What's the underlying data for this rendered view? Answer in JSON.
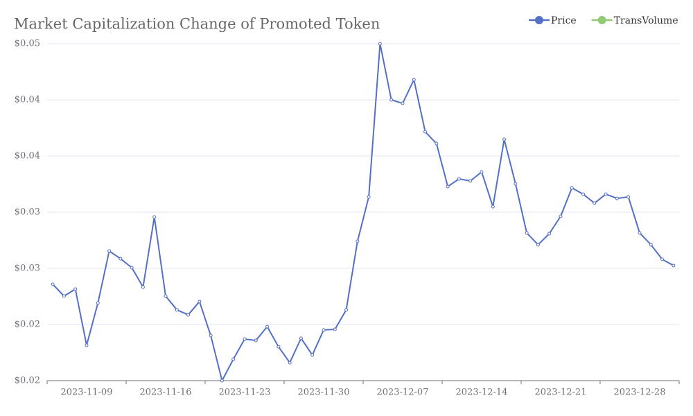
{
  "chart_data": {
    "type": "line",
    "title": "Market Capitalization Change of Promoted Token",
    "categories": [
      null,
      null,
      null,
      "2023-11-09",
      null,
      null,
      null,
      null,
      null,
      null,
      "2023-11-16",
      null,
      null,
      null,
      null,
      null,
      null,
      "2023-11-23",
      null,
      null,
      null,
      null,
      null,
      null,
      "2023-11-30",
      null,
      null,
      null,
      null,
      null,
      null,
      "2023-12-07",
      null,
      null,
      null,
      null,
      null,
      null,
      "2023-12-14",
      null,
      null,
      null,
      null,
      null,
      null,
      "2023-12-21",
      null,
      null,
      null,
      null,
      null,
      null,
      "2023-12-28",
      null,
      null,
      null
    ],
    "series": [
      {
        "name": "Price",
        "color": "#5470c6",
        "values": [
          0.02858,
          0.02753,
          0.02815,
          0.02315,
          0.02691,
          0.03154,
          0.03086,
          0.03006,
          0.02833,
          0.03457,
          0.02753,
          0.0263,
          0.02586,
          0.02704,
          0.02401,
          0.02,
          0.02191,
          0.0237,
          0.02358,
          0.02481,
          0.02302,
          0.0216,
          0.02377,
          0.02228,
          0.02451,
          0.02457,
          0.0263,
          0.03241,
          0.03636,
          0.05,
          0.045,
          0.04469,
          0.04679,
          0.04216,
          0.04111,
          0.03728,
          0.03796,
          0.03778,
          0.03858,
          0.03549,
          0.04148,
          0.03753,
          0.03315,
          0.0321,
          0.03309,
          0.03463,
          0.03716,
          0.0366,
          0.0358,
          0.0366,
          0.03623,
          0.03636,
          0.03315,
          0.0321,
          0.0308,
          0.03025
        ]
      },
      {
        "name": "TransVolume",
        "color": "#91cc75",
        "values": [
          null,
          null,
          null,
          null,
          null,
          null,
          null,
          null,
          null,
          null,
          null,
          null,
          null,
          null,
          null,
          null,
          null,
          null,
          null,
          null,
          null,
          null,
          null,
          null,
          null,
          null,
          null,
          null,
          null,
          null,
          null,
          null,
          null,
          null,
          null,
          null,
          null,
          null,
          null,
          null,
          null,
          null,
          null,
          null,
          null,
          null,
          null,
          null,
          null,
          null,
          null,
          null,
          null,
          null,
          null,
          null
        ]
      }
    ],
    "ylim": [
      0.02,
      0.05
    ],
    "yticks": [
      {
        "value": 0.02,
        "label": "$0.02"
      },
      {
        "value": 0.025,
        "label": "$0.02"
      },
      {
        "value": 0.03,
        "label": "$0.03"
      },
      {
        "value": 0.035,
        "label": "$0.03"
      },
      {
        "value": 0.04,
        "label": "$0.04"
      },
      {
        "value": 0.045,
        "label": "$0.04"
      },
      {
        "value": 0.05,
        "label": "$0.05"
      }
    ],
    "grid": true,
    "legend": "top-right"
  }
}
